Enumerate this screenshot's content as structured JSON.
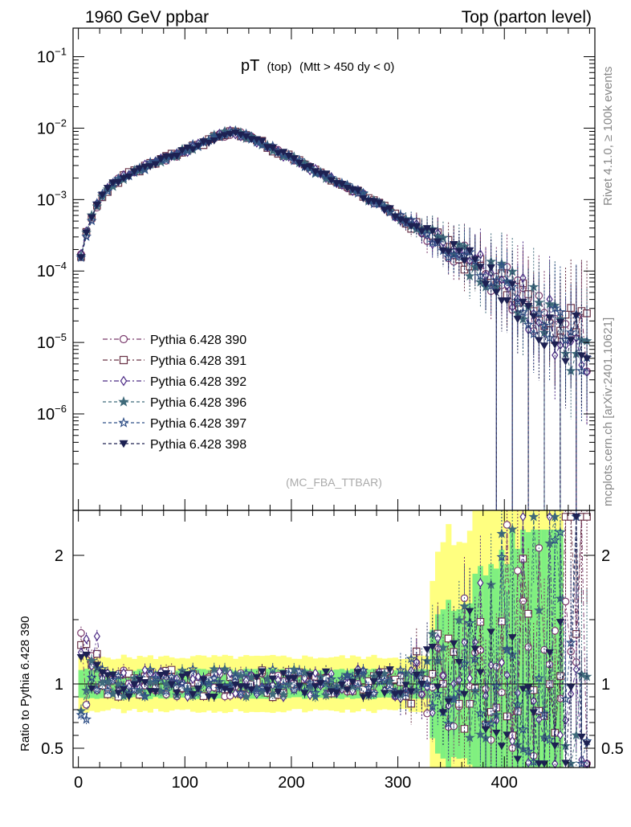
{
  "header": {
    "left": "1960 GeV ppbar",
    "right": "Top (parton level)"
  },
  "side": {
    "rivet": "Rivet 4.1.0, ≥ 100k events",
    "mcplots": "mcplots.cern.ch [arXiv:2401.10621]"
  },
  "watermark": "(MC_FBA_TTBAR)",
  "chart_data": {
    "type": "scatter",
    "title": {
      "main": "pT",
      "sub1": "(top)",
      "sub2": "(Mtt > 450 dy < 0)"
    },
    "xlabel": "",
    "ylabel_ratio": "Ratio to Pythia 6.428 390",
    "xlim": [
      -5,
      485
    ],
    "ylim_main_log10": [
      -7.35,
      -0.6
    ],
    "ylim_ratio": [
      0.35,
      2.35
    ],
    "x_ticks": [
      "0",
      "100",
      "200",
      "300",
      "400"
    ],
    "x_tick_values": [
      0,
      100,
      200,
      300,
      400
    ],
    "y_ticks_main": [
      {
        "base": "10",
        "exp": "−1",
        "val": -1
      },
      {
        "base": "10",
        "exp": "−2",
        "val": -2
      },
      {
        "base": "10",
        "exp": "−3",
        "val": -3
      },
      {
        "base": "10",
        "exp": "−4",
        "val": -4
      },
      {
        "base": "10",
        "exp": "−5",
        "val": -5
      },
      {
        "base": "10",
        "exp": "−6",
        "val": -6
      }
    ],
    "y_ticks_ratio": [
      {
        "label": "0.5",
        "val": 0.5
      },
      {
        "label": "1",
        "val": 1
      },
      {
        "label": "2",
        "val": 2
      }
    ],
    "bin_width": 5,
    "curve": {
      "knots_x": [
        0,
        3,
        8,
        15,
        25,
        35,
        50,
        70,
        90,
        110,
        130,
        145,
        160,
        180,
        200,
        220,
        250,
        280,
        300,
        320,
        340,
        360,
        380,
        400,
        420,
        440,
        460,
        475
      ],
      "knots_log10y": [
        -3.9,
        -3.75,
        -3.45,
        -3.15,
        -2.9,
        -2.75,
        -2.62,
        -2.5,
        -2.38,
        -2.25,
        -2.12,
        -2.05,
        -2.12,
        -2.27,
        -2.42,
        -2.58,
        -2.8,
        -3.05,
        -3.23,
        -3.42,
        -3.6,
        -3.8,
        -4.0,
        -4.2,
        -4.45,
        -4.7,
        -4.95,
        -5.0
      ]
    },
    "series": [
      {
        "name": "Pythia 6.428 390",
        "color": "#7a3a6c",
        "marker": "circle-open",
        "dash": "6,3,2,3",
        "seed": 11
      },
      {
        "name": "Pythia 6.428 391",
        "color": "#6b3448",
        "marker": "square-open",
        "dash": "6,3,2,3",
        "seed": 23
      },
      {
        "name": "Pythia 6.428 392",
        "color": "#4c2a85",
        "marker": "diamond-open",
        "dash": "6,3,2,3",
        "seed": 37
      },
      {
        "name": "Pythia 6.428 396",
        "color": "#3f6a7a",
        "marker": "star-filled",
        "dash": "4,3",
        "seed": 53
      },
      {
        "name": "Pythia 6.428 397",
        "color": "#2f4f86",
        "marker": "star-open",
        "dash": "4,3",
        "seed": 71
      },
      {
        "name": "Pythia 6.428 398",
        "color": "#1d2152",
        "marker": "triangle-down-filled",
        "dash": "4,3",
        "seed": 97
      }
    ],
    "bands": {
      "yellow": "#ffff80",
      "green": "#80f080"
    }
  }
}
